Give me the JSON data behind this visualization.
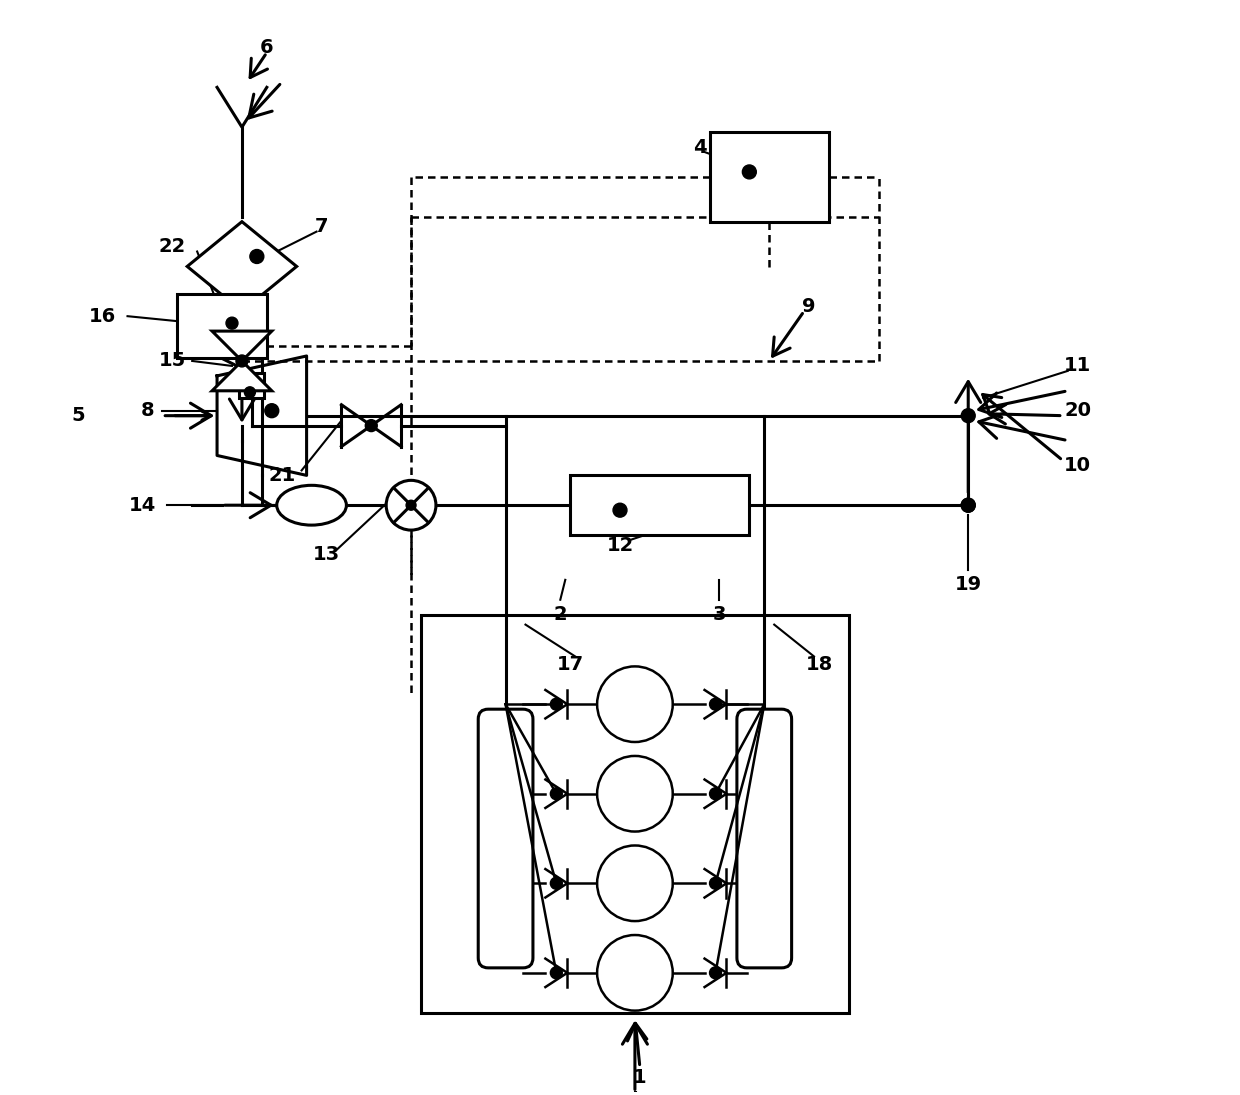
{
  "bg": "#ffffff",
  "lc": "#000000",
  "lw": 2.2,
  "lw2": 1.8,
  "dash": [
    6,
    4
  ],
  "figsize": [
    12.4,
    10.95
  ],
  "dpi": 100
}
